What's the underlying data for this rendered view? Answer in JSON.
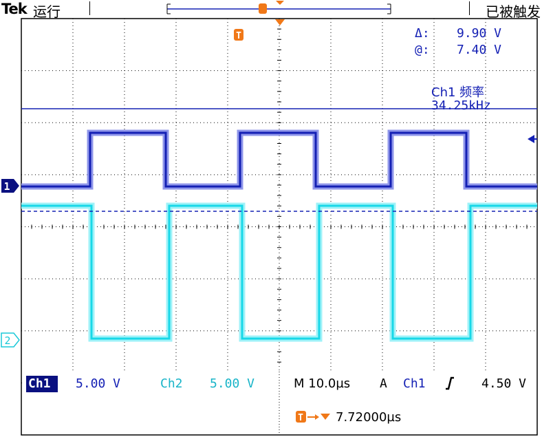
{
  "header": {
    "brand": "Tek",
    "run_state": "运行",
    "trigger_status": "已被触发"
  },
  "cursor_readout": {
    "delta_label": "Δ:",
    "delta_value": "9.90 V",
    "at_label": "@:",
    "at_value": "7.40 V"
  },
  "measurement": {
    "label": "Ch1 频率",
    "value": "34.25kHz"
  },
  "markers": {
    "ch1": "1",
    "ch2": "2",
    "trigger": "T"
  },
  "status_bar": {
    "ch1_label": "Ch1",
    "ch1_scale": "5.00 V",
    "ch2_label": "Ch2",
    "ch2_scale": "5.00 V",
    "timebase": "M 10.0µs",
    "trigger_mode": "A",
    "trigger_source": "Ch1",
    "trigger_level": "4.50 V",
    "trigger_offset": "7.72000µs"
  },
  "colors": {
    "ch1": "#1420b4",
    "ch2": "#18d8e8",
    "trigger": "#f07818",
    "grid": "#000000"
  },
  "icons": {
    "trigger_slope": "rising-edge-icon",
    "level_arrow": "left-arrow-icon"
  }
}
